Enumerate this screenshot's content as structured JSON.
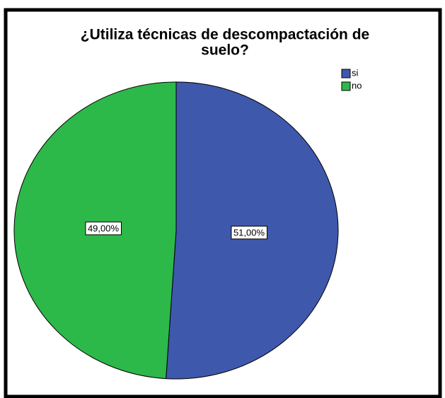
{
  "chart_data": {
    "type": "pie",
    "title": [
      "¿Utiliza técnicas de descompactación de",
      "suelo?"
    ],
    "categories": [
      "si",
      "no"
    ],
    "values": [
      51,
      49
    ],
    "value_labels": [
      "51,00%",
      "49,00%"
    ],
    "colors": [
      "#3e58ac",
      "#2db84a"
    ],
    "legend": "top-right"
  }
}
